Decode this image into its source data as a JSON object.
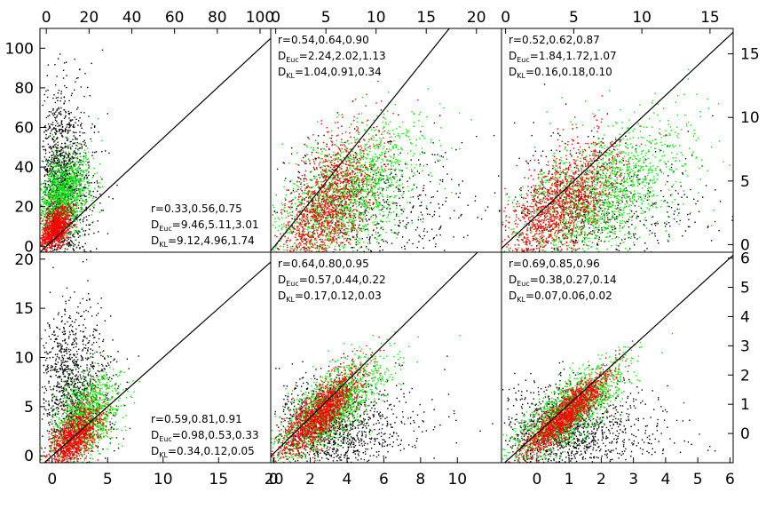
{
  "chart_data": [
    {
      "panel": "top-left",
      "type": "scatter",
      "xlim": [
        -3,
        105
      ],
      "ylim": [
        -3,
        110
      ],
      "x_ticks": [
        0,
        20,
        40,
        60,
        80,
        100
      ],
      "x_tick_side": "top",
      "y_ticks": [
        0,
        20,
        40,
        60,
        80,
        100
      ],
      "y_tick_side": "left",
      "identity_line": true,
      "annotation_position": "bottom-right",
      "annotation": {
        "r": "0.33,0.56,0.75",
        "d_euc": "9.46,5.11,3.01",
        "d_kl": "9.12,4.96,1.74"
      },
      "series": [
        {
          "color": "#000000",
          "center": [
            4,
            30
          ],
          "spread": [
            9,
            30
          ],
          "tilt": 0.0,
          "count": 1500
        },
        {
          "color": "#00ee00",
          "center": [
            8,
            26
          ],
          "spread": [
            10,
            12
          ],
          "tilt": 0.5,
          "count": 1200
        },
        {
          "color": "#ff0000",
          "center": [
            4,
            9
          ],
          "spread": [
            6,
            6
          ],
          "tilt": 0.7,
          "count": 1000
        }
      ]
    },
    {
      "panel": "top-center",
      "type": "scatter",
      "xlim": [
        -0.5,
        22.5
      ],
      "ylim": [
        -0.6,
        17.3
      ],
      "x_ticks": [
        0,
        5,
        10,
        15,
        20
      ],
      "x_tick_side": "top",
      "y_ticks": [],
      "identity_line": true,
      "annotation_position": "top-left",
      "annotation": {
        "r": "0.54,0.64,0.90",
        "d_euc": "2.24,2.02,1.13",
        "d_kl": "1.04,0.91,0.34"
      },
      "series": [
        {
          "color": "#000000",
          "center": [
            9,
            3
          ],
          "spread": [
            8,
            3
          ],
          "tilt": 0.3,
          "count": 700
        },
        {
          "color": "#00ee00",
          "center": [
            7,
            4
          ],
          "spread": [
            6,
            3
          ],
          "tilt": 0.45,
          "count": 1600
        },
        {
          "color": "#ff0000",
          "center": [
            5,
            3
          ],
          "spread": [
            4,
            3
          ],
          "tilt": 0.7,
          "count": 1400
        }
      ]
    },
    {
      "panel": "top-right",
      "type": "scatter",
      "xlim": [
        -0.3,
        16.7
      ],
      "ylim": [
        -0.6,
        17.0
      ],
      "x_ticks": [
        0,
        5,
        10,
        15
      ],
      "x_tick_side": "top",
      "y_ticks": [
        0,
        5,
        10,
        15
      ],
      "y_tick_side": "right",
      "identity_line": true,
      "annotation_position": "top-left",
      "annotation": {
        "r": "0.52,0.62,0.87",
        "d_euc": "1.84,1.72,1.07",
        "d_kl": "0.16,0.18,0.10"
      },
      "series": [
        {
          "color": "#000000",
          "center": [
            8,
            3
          ],
          "spread": [
            6,
            3
          ],
          "tilt": 0.3,
          "count": 700
        },
        {
          "color": "#00ee00",
          "center": [
            7,
            4
          ],
          "spread": [
            5,
            3
          ],
          "tilt": 0.45,
          "count": 1600
        },
        {
          "color": "#ff0000",
          "center": [
            4,
            3
          ],
          "spread": [
            3.5,
            2.5
          ],
          "tilt": 0.7,
          "count": 1400
        }
      ]
    },
    {
      "panel": "bottom-left",
      "type": "scatter",
      "xlim": [
        -1.1,
        19.7
      ],
      "ylim": [
        -0.7,
        20.7
      ],
      "x_ticks": [
        0,
        5,
        10,
        15,
        20
      ],
      "x_tick_side": "bottom",
      "y_ticks": [
        0,
        5,
        10,
        15,
        20
      ],
      "y_tick_side": "left",
      "identity_line": true,
      "annotation_position": "bottom-right",
      "annotation": {
        "r": "0.59,0.81,0.91",
        "d_euc": "0.98,0.53,0.33",
        "d_kl": "0.34,0.12,0.05"
      },
      "series": [
        {
          "color": "#000000",
          "center": [
            2,
            7
          ],
          "spread": [
            2.5,
            5
          ],
          "tilt": 0.0,
          "count": 1100
        },
        {
          "color": "#00ee00",
          "center": [
            3,
            4
          ],
          "spread": [
            2.5,
            2.5
          ],
          "tilt": 0.6,
          "count": 1100
        },
        {
          "color": "#ff0000",
          "center": [
            2,
            2
          ],
          "spread": [
            2,
            1.6
          ],
          "tilt": 0.8,
          "count": 1100
        }
      ]
    },
    {
      "panel": "bottom-center",
      "type": "scatter",
      "xlim": [
        -0.15,
        12.4
      ],
      "ylim": [
        -0.5,
        11.1
      ],
      "x_ticks": [
        0,
        2,
        4,
        6,
        8,
        10
      ],
      "x_tick_side": "bottom",
      "y_ticks": [],
      "identity_line": true,
      "annotation_position": "top-left",
      "annotation": {
        "r": "0.64,0.80,0.95",
        "d_euc": "0.57,0.44,0.22",
        "d_kl": "0.17,0.12,0.03"
      },
      "series": [
        {
          "color": "#000000",
          "center": [
            3,
            1.5
          ],
          "spread": [
            3,
            1.5
          ],
          "tilt": 0.4,
          "count": 1300
        },
        {
          "color": "#00ee00",
          "center": [
            3,
            2.5
          ],
          "spread": [
            2.5,
            1.2
          ],
          "tilt": 0.7,
          "count": 1500
        },
        {
          "color": "#ff0000",
          "center": [
            2.5,
            2.2
          ],
          "spread": [
            1.8,
            0.9
          ],
          "tilt": 0.9,
          "count": 1500
        }
      ]
    },
    {
      "panel": "bottom-right",
      "type": "scatter",
      "xlim": [
        -1.1,
        6.1
      ],
      "ylim": [
        -1.0,
        6.2
      ],
      "x_ticks": [
        0,
        1,
        2,
        3,
        4,
        5,
        6
      ],
      "x_tick_side": "bottom",
      "y_ticks": [
        0,
        1,
        2,
        3,
        4,
        5,
        6
      ],
      "y_tick_side": "right",
      "identity_line": true,
      "annotation_position": "top-left",
      "annotation": {
        "r": "0.69,0.85,0.96",
        "d_euc": "0.38,0.27,0.14",
        "d_kl": "0.07,0.06,0.02"
      },
      "series": [
        {
          "color": "#000000",
          "center": [
            1,
            0.2
          ],
          "spread": [
            1.8,
            0.8
          ],
          "tilt": 0.45,
          "count": 1300
        },
        {
          "color": "#00ee00",
          "center": [
            1,
            0.8
          ],
          "spread": [
            1.4,
            0.6
          ],
          "tilt": 0.75,
          "count": 1500
        },
        {
          "color": "#ff0000",
          "center": [
            0.9,
            0.7
          ],
          "spread": [
            1.1,
            0.4
          ],
          "tilt": 0.95,
          "count": 1500
        }
      ]
    }
  ]
}
